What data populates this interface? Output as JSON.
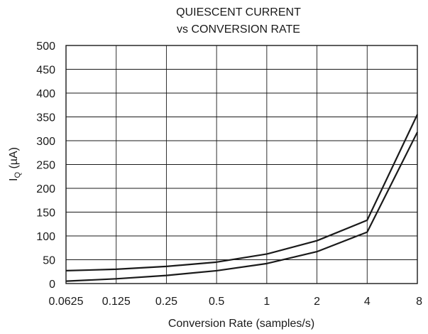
{
  "chart_data": {
    "type": "line",
    "title_line1": "QUIESCENT CURRENT",
    "title_line2": "vs CONVERSION RATE",
    "xlabel": "Conversion Rate (samples/s)",
    "ylabel_main": "I",
    "ylabel_sub": "Q",
    "ylabel_unit": " (µA)",
    "x_scale": "log2",
    "categories": [
      "0.0625",
      "0.125",
      "0.25",
      "0.5",
      "1",
      "2",
      "4",
      "8"
    ],
    "x_values": [
      0.0625,
      0.125,
      0.25,
      0.5,
      1,
      2,
      4,
      8
    ],
    "ylim": [
      0,
      500
    ],
    "yticks": [
      0,
      50,
      100,
      150,
      200,
      250,
      300,
      350,
      400,
      450,
      500
    ],
    "grid": true,
    "series": [
      {
        "x": [
          0.0625,
          0.125,
          0.25,
          0.5,
          1,
          2,
          4,
          8
        ],
        "values": [
          27,
          30,
          36,
          45,
          62,
          90,
          133,
          355
        ]
      },
      {
        "x": [
          0.0625,
          0.125,
          0.25,
          0.5,
          1,
          2,
          4,
          8
        ],
        "values": [
          5,
          10,
          17,
          27,
          42,
          67,
          108,
          318
        ]
      }
    ]
  }
}
